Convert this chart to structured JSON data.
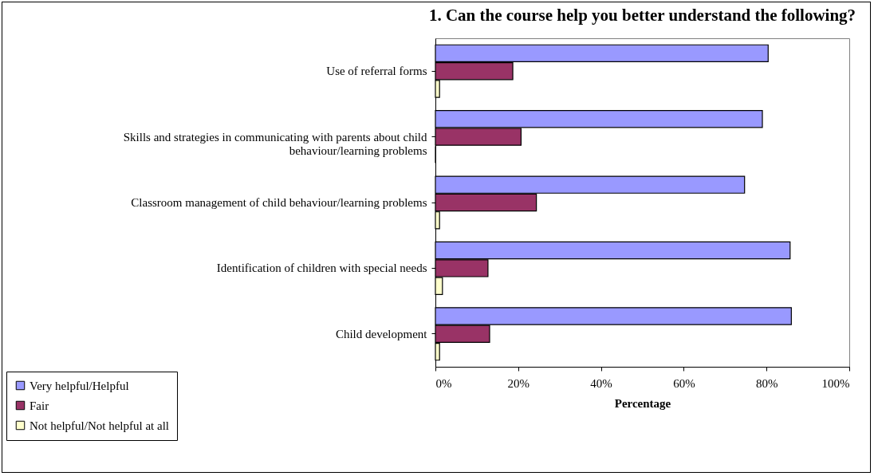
{
  "chart_data": {
    "type": "bar",
    "orientation": "horizontal",
    "title": "1. Can the course help you better understand the following?",
    "xlabel": "Percentage",
    "categories": [
      "Use of referral forms",
      "Skills and strategies in communicating with parents about child behaviour/learning problems",
      "Classroom management of child behaviour/learning problems",
      "Identification of children with special needs",
      "Child development"
    ],
    "series": [
      {
        "name": "Very helpful/Helpful",
        "color": "#9999ff",
        "values": [
          80.4,
          79.0,
          74.7,
          85.7,
          86.0
        ]
      },
      {
        "name": "Fair",
        "color": "#993366",
        "values": [
          18.7,
          20.7,
          24.4,
          12.7,
          13.1
        ]
      },
      {
        "name": "Not helpful/Not helpful at all",
        "color": "#ffffcc",
        "values": [
          1.0,
          0,
          1.0,
          1.7,
          1.0
        ]
      }
    ],
    "xlim": [
      0,
      100
    ],
    "xticks": [
      {
        "value": 0,
        "label": "0%"
      },
      {
        "value": 20,
        "label": "20%"
      },
      {
        "value": 40,
        "label": "40%"
      },
      {
        "value": 60,
        "label": "60%"
      },
      {
        "value": 80,
        "label": "80%"
      },
      {
        "value": 100,
        "label": "100%"
      }
    ],
    "grid": false,
    "legend": "bottom left"
  }
}
